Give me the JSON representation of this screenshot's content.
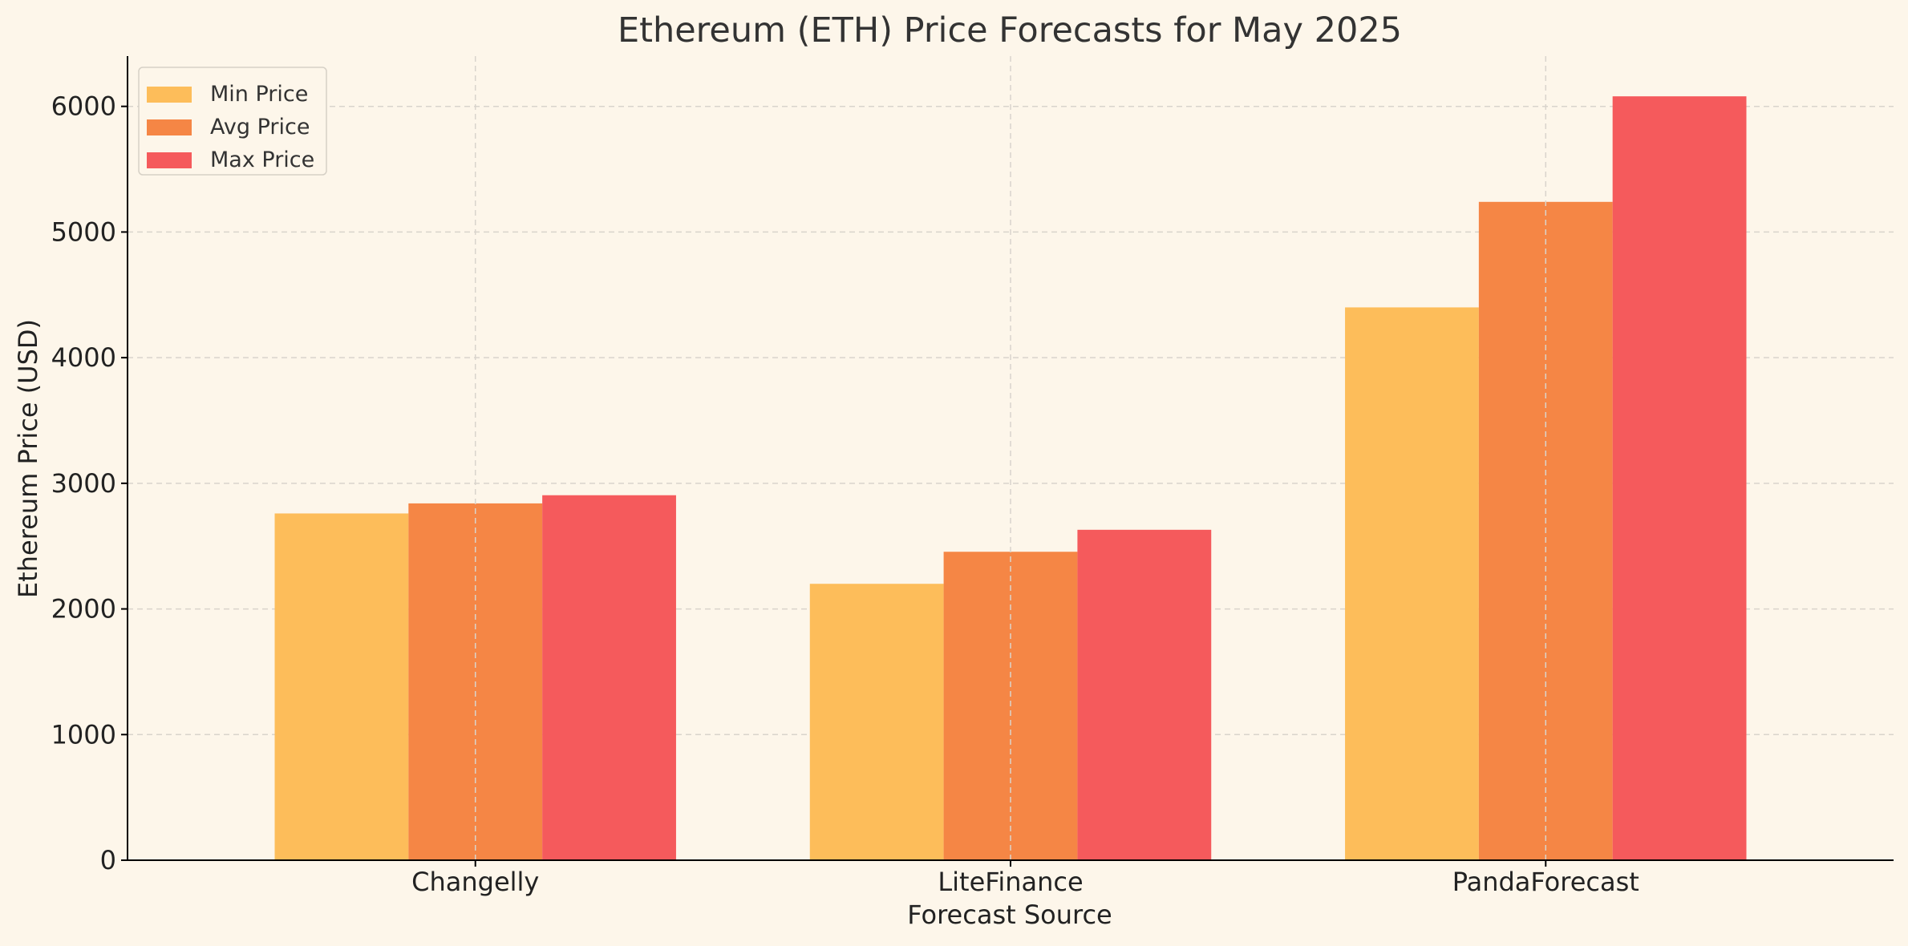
{
  "chart_data": {
    "type": "bar",
    "title": "Ethereum (ETH) Price Forecasts for May 2025",
    "xlabel": "Forecast Source",
    "ylabel": "Ethereum Price (USD)",
    "categories": [
      "Changelly",
      "LiteFinance",
      "PandaForecast"
    ],
    "series": [
      {
        "name": "Min Price",
        "color": "#fdbd5a",
        "values": [
          2760,
          2200,
          4400
        ]
      },
      {
        "name": "Avg Price",
        "color": "#f58645",
        "values": [
          2840,
          2455,
          5240
        ]
      },
      {
        "name": "Max Price",
        "color": "#f55a5c",
        "values": [
          2905,
          2630,
          6080
        ]
      }
    ],
    "ylim": [
      0,
      6400
    ],
    "yticks": [
      0,
      1000,
      2000,
      3000,
      4000,
      5000,
      6000
    ],
    "grid": true,
    "legend_position": "top-left",
    "colors": {
      "background": "#fdf6ea",
      "grid": "#d9d4cc",
      "axis": "#000000"
    }
  }
}
